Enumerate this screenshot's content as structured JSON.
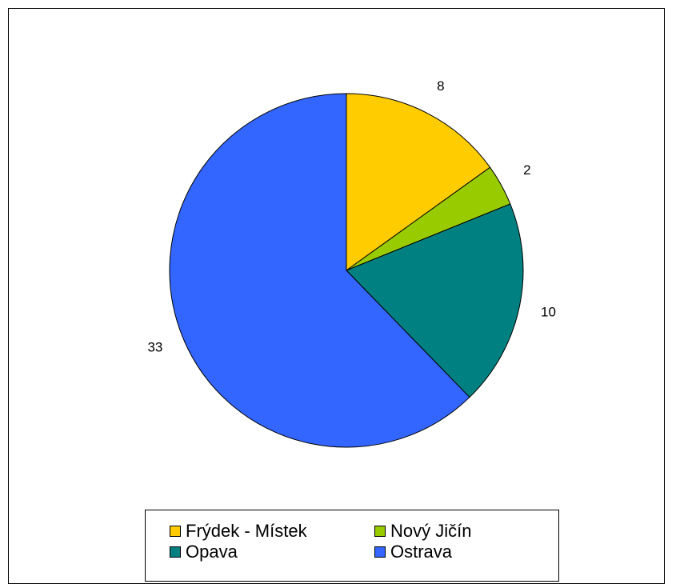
{
  "chart_data": {
    "type": "pie",
    "title": "",
    "slices": [
      {
        "label": "Frýdek - Místek",
        "value": 8,
        "color": "#FFCC00"
      },
      {
        "label": "Nový Jičín",
        "value": 2,
        "color": "#99CC00"
      },
      {
        "label": "Opava",
        "value": 10,
        "color": "#008080"
      },
      {
        "label": "Ostrava",
        "value": 33,
        "color": "#3366FF"
      }
    ],
    "start_angle_deg": 0,
    "direction": "clockwise",
    "legend_position": "bottom",
    "data_labels": "values"
  }
}
